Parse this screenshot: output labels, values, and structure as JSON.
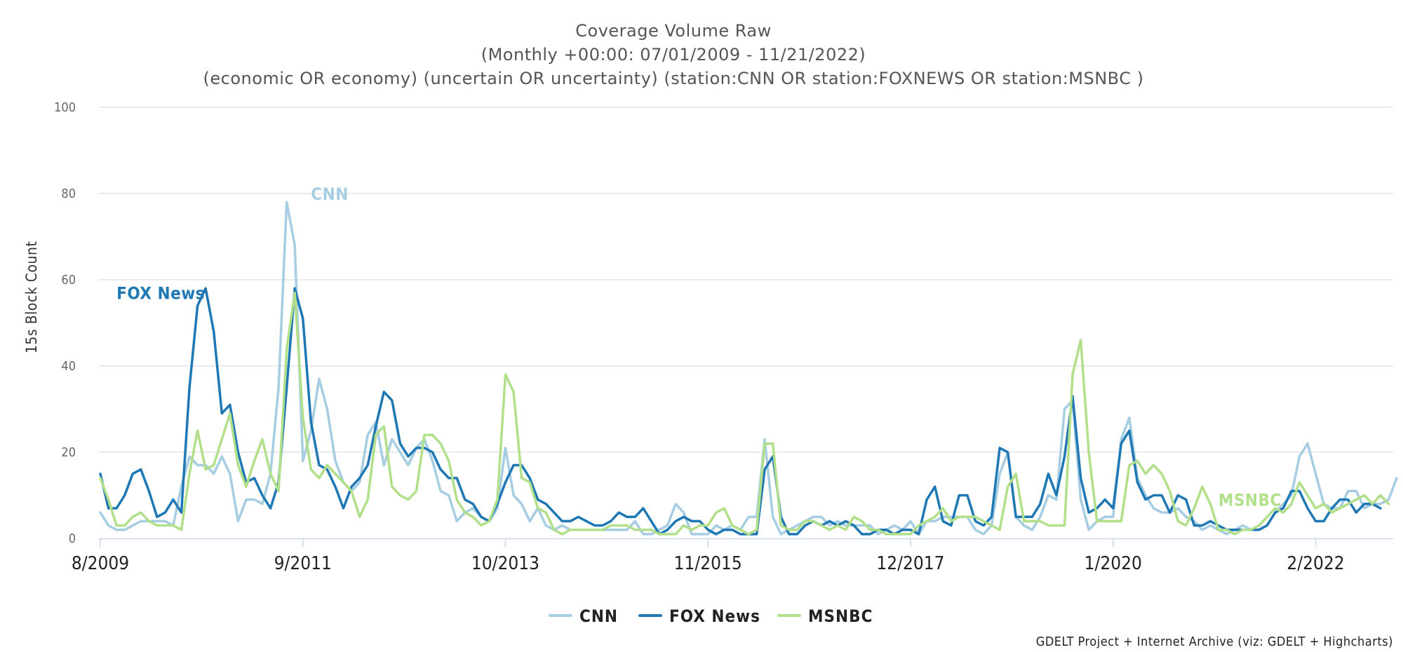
{
  "chart_data": {
    "type": "line",
    "title": "Coverage Volume Raw",
    "subtitle_lines": [
      "(Monthly +00:00: 07/01/2009 - 11/21/2022)",
      "(economic OR economy) (uncertain OR uncertainty) (station:CNN OR station:FOXNEWS OR station:MSNBC )"
    ],
    "ylabel": "15s Block Count",
    "xlabel": "",
    "ylim": [
      0,
      100
    ],
    "yticks": [
      0,
      20,
      40,
      60,
      80,
      100
    ],
    "x_start_index_label": "8/2009",
    "xticks": [
      {
        "index": 0,
        "label": "8/2009"
      },
      {
        "index": 25,
        "label": "9/2011"
      },
      {
        "index": 50,
        "label": "10/2013"
      },
      {
        "index": 75,
        "label": "11/2015"
      },
      {
        "index": 100,
        "label": "12/2017"
      },
      {
        "index": 125,
        "label": "1/2020"
      },
      {
        "index": 150,
        "label": "2/2022"
      }
    ],
    "grid": true,
    "legend_position": "bottom-center",
    "series": [
      {
        "name": "CNN",
        "color": "#a6cde2",
        "values": [
          6,
          3,
          2,
          2,
          3,
          4,
          4,
          4,
          4,
          3,
          12,
          19,
          17,
          17,
          15,
          19,
          15,
          4,
          9,
          9,
          8,
          15,
          35,
          78,
          68,
          18,
          25,
          37,
          30,
          18,
          13,
          11,
          13,
          24,
          27,
          17,
          23,
          20,
          17,
          21,
          23,
          18,
          11,
          10,
          4,
          6,
          7,
          5,
          4,
          7,
          21,
          10,
          8,
          4,
          7,
          3,
          2,
          3,
          2,
          2,
          2,
          2,
          2,
          2,
          2,
          2,
          4,
          1,
          1,
          2,
          3,
          8,
          6,
          1,
          1,
          1,
          3,
          2,
          3,
          2,
          5,
          5,
          23,
          5,
          1,
          2,
          3,
          4,
          5,
          5,
          3,
          4,
          3,
          3,
          3,
          3,
          1,
          2,
          3,
          2,
          4,
          1,
          4,
          4,
          5,
          5,
          5,
          5,
          2,
          1,
          3,
          15,
          20,
          5,
          3,
          2,
          5,
          10,
          9,
          30,
          32,
          9,
          2,
          4,
          5,
          5,
          23,
          28,
          14,
          10,
          7,
          6,
          6,
          7,
          5,
          4,
          2,
          3,
          2,
          1,
          2,
          3,
          2,
          2,
          3,
          6,
          8,
          10,
          19,
          22,
          15,
          8,
          7,
          7,
          11,
          11,
          7,
          8,
          8,
          9,
          14
        ],
        "annotation": {
          "text": "CNN",
          "index": 26,
          "value": 80
        }
      },
      {
        "name": "FOX News",
        "color": "#1f78b4",
        "values": [
          15,
          7,
          7,
          10,
          15,
          16,
          11,
          5,
          6,
          9,
          6,
          35,
          54,
          58,
          48,
          29,
          31,
          20,
          13,
          14,
          10,
          7,
          13,
          35,
          58,
          51,
          27,
          17,
          16,
          12,
          7,
          12,
          14,
          17,
          26,
          34,
          32,
          22,
          19,
          21,
          21,
          20,
          16,
          14,
          14,
          9,
          8,
          5,
          4,
          8,
          13,
          17,
          17,
          14,
          9,
          8,
          6,
          4,
          4,
          5,
          4,
          3,
          3,
          4,
          6,
          5,
          5,
          7,
          4,
          1,
          2,
          4,
          5,
          4,
          4,
          2,
          1,
          2,
          2,
          1,
          1,
          1,
          16,
          19,
          5,
          1,
          1,
          3,
          4,
          3,
          4,
          3,
          4,
          3,
          1,
          1,
          2,
          2,
          1,
          2,
          2,
          1,
          9,
          12,
          4,
          3,
          10,
          10,
          4,
          3,
          5,
          21,
          20,
          5,
          5,
          5,
          8,
          15,
          10,
          19,
          33,
          14,
          6,
          7,
          9,
          7,
          22,
          25,
          13,
          9,
          10,
          10,
          6,
          10,
          9,
          3,
          3,
          4,
          3,
          2,
          2,
          2,
          2,
          2,
          3,
          6,
          7,
          11,
          11,
          7,
          4,
          4,
          7,
          9,
          9,
          6,
          8,
          8,
          7
        ],
        "annotation": {
          "text": "FOX News",
          "index": 2,
          "value": 57
        }
      },
      {
        "name": "MSNBC",
        "color": "#b2df8a",
        "values": [
          14,
          9,
          3,
          3,
          5,
          6,
          4,
          3,
          3,
          3,
          2,
          15,
          25,
          16,
          17,
          23,
          29,
          17,
          12,
          18,
          23,
          15,
          11,
          44,
          57,
          28,
          16,
          14,
          17,
          15,
          13,
          11,
          5,
          9,
          24,
          26,
          12,
          10,
          9,
          11,
          24,
          24,
          22,
          18,
          9,
          6,
          5,
          3,
          4,
          9,
          38,
          34,
          14,
          13,
          7,
          6,
          2,
          1,
          2,
          2,
          2,
          2,
          2,
          3,
          3,
          3,
          2,
          2,
          2,
          1,
          1,
          1,
          3,
          2,
          3,
          3,
          6,
          7,
          3,
          2,
          1,
          2,
          22,
          22,
          3,
          2,
          2,
          4,
          4,
          3,
          2,
          3,
          2,
          5,
          4,
          2,
          2,
          1,
          1,
          1,
          1,
          3,
          4,
          5,
          7,
          4,
          5,
          5,
          5,
          4,
          3,
          2,
          12,
          15,
          4,
          4,
          4,
          3,
          3,
          3,
          38,
          46,
          20,
          4,
          4,
          4,
          4,
          17,
          18,
          15,
          17,
          15,
          11,
          4,
          3,
          7,
          12,
          8,
          2,
          2,
          1,
          2,
          2,
          3,
          5,
          7,
          6,
          8,
          13,
          10,
          7,
          8,
          6,
          7,
          8,
          9,
          10,
          8,
          10,
          8
        ],
        "annotation": {
          "text": "MSNBC",
          "index": 138,
          "value": 9
        }
      }
    ]
  },
  "legend": {
    "items": [
      {
        "label": "CNN",
        "color": "#a6cde2"
      },
      {
        "label": "FOX News",
        "color": "#1f78b4"
      },
      {
        "label": "MSNBC",
        "color": "#b2df8a"
      }
    ]
  },
  "credit": "GDELT Project + Internet Archive (viz: GDELT + Highcharts)"
}
